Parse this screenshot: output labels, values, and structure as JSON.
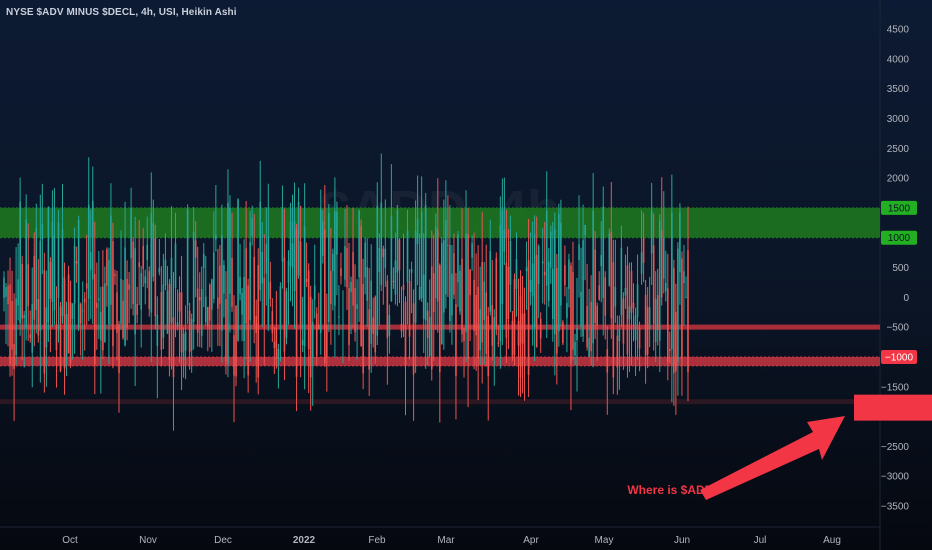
{
  "chart_data": {
    "type": "candlestick",
    "title": "NYSE $ADV MINUS $DECL, 4h, USI, Heikin Ashi",
    "watermark": "$ADD, 4h",
    "x_ticks": [
      "Oct",
      "Nov",
      "Dec",
      "2022",
      "Feb",
      "Mar",
      "Apr",
      "May",
      "Jun",
      "Jul",
      "Aug"
    ],
    "y_ticks": [
      4500,
      4000,
      3500,
      3000,
      2500,
      2000,
      1500,
      1000,
      500,
      0,
      -500,
      -1000,
      -1500,
      -2000,
      -2500,
      -3000,
      -3500
    ],
    "ylim": [
      -3900,
      4800
    ],
    "zones": [
      {
        "from": 1000,
        "to": 1500,
        "color": "#1f7a1f"
      },
      {
        "from": -1150,
        "to": -1000,
        "color": "#c93642"
      }
    ],
    "levels": [
      {
        "value": -500,
        "color": "#b8303c"
      },
      {
        "value": -1750,
        "color": "#3a1c26"
      }
    ],
    "axis_badges": [
      {
        "value": 1500,
        "label": "1500",
        "bg": "#22b022",
        "fg": "#0b1321"
      },
      {
        "value": 1000,
        "label": "1000",
        "bg": "#22b022",
        "fg": "#0b1321"
      },
      {
        "value": -1000,
        "label": "−1000",
        "bg": "#f23645",
        "fg": "#ffffff"
      },
      {
        "value": -1800,
        "label": "",
        "bg": "#f23645",
        "fg": "#ffffff"
      }
    ],
    "bull_color": "#26a69a",
    "bear_color": "#ef5350",
    "annotation": {
      "text": "Where is $ADD?",
      "color": "#f23645"
    }
  }
}
